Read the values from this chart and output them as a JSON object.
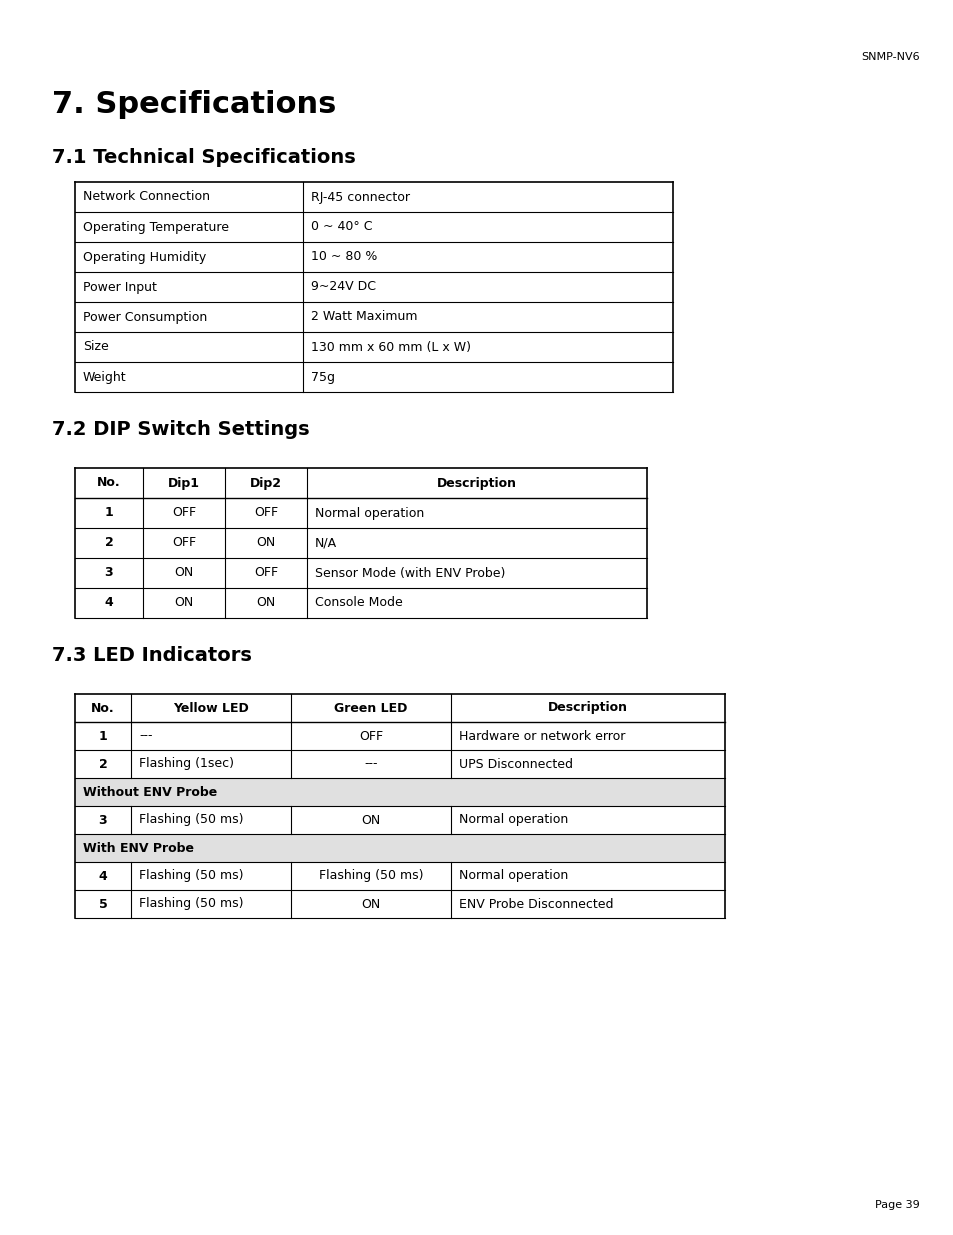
{
  "header_label": "SNMP-NV6",
  "main_title": "7. Specifications",
  "section1_title": "7.1 Technical Specifications",
  "tech_spec_rows": [
    [
      "Network Connection",
      "RJ-45 connector"
    ],
    [
      "Operating Temperature",
      "0 ~ 40° C"
    ],
    [
      "Operating Humidity",
      "10 ~ 80 %"
    ],
    [
      "Power Input",
      "9~24V DC"
    ],
    [
      "Power Consumption",
      "2 Watt Maximum"
    ],
    [
      "Size",
      "130 mm x 60 mm (L x W)"
    ],
    [
      "Weight",
      "75g"
    ]
  ],
  "section2_title": "7.2 DIP Switch Settings",
  "dip_headers": [
    "No.",
    "Dip1",
    "Dip2",
    "Description"
  ],
  "dip_rows": [
    [
      "1",
      "OFF",
      "OFF",
      "Normal operation"
    ],
    [
      "2",
      "OFF",
      "ON",
      "N/A"
    ],
    [
      "3",
      "ON",
      "OFF",
      "Sensor Mode (with ENV Probe)"
    ],
    [
      "4",
      "ON",
      "ON",
      "Console Mode"
    ]
  ],
  "section3_title": "7.3 LED Indicators",
  "led_headers": [
    "No.",
    "Yellow LED",
    "Green LED",
    "Description"
  ],
  "led_rows": [
    [
      "1",
      "---",
      "OFF",
      "Hardware or network error"
    ],
    [
      "2",
      "Flashing (1sec)",
      "---",
      "UPS Disconnected"
    ],
    [
      "without_env",
      "Without ENV Probe",
      "",
      ""
    ],
    [
      "3",
      "Flashing (50 ms)",
      "ON",
      "Normal operation"
    ],
    [
      "with_env",
      "With ENV Probe",
      "",
      ""
    ],
    [
      "4",
      "Flashing (50 ms)",
      "Flashing (50 ms)",
      "Normal operation"
    ],
    [
      "5",
      "Flashing (50 ms)",
      "ON",
      "ENV Probe Disconnected"
    ]
  ],
  "page_label": "Page 39",
  "bg_color": "#ffffff",
  "text_color": "#000000"
}
